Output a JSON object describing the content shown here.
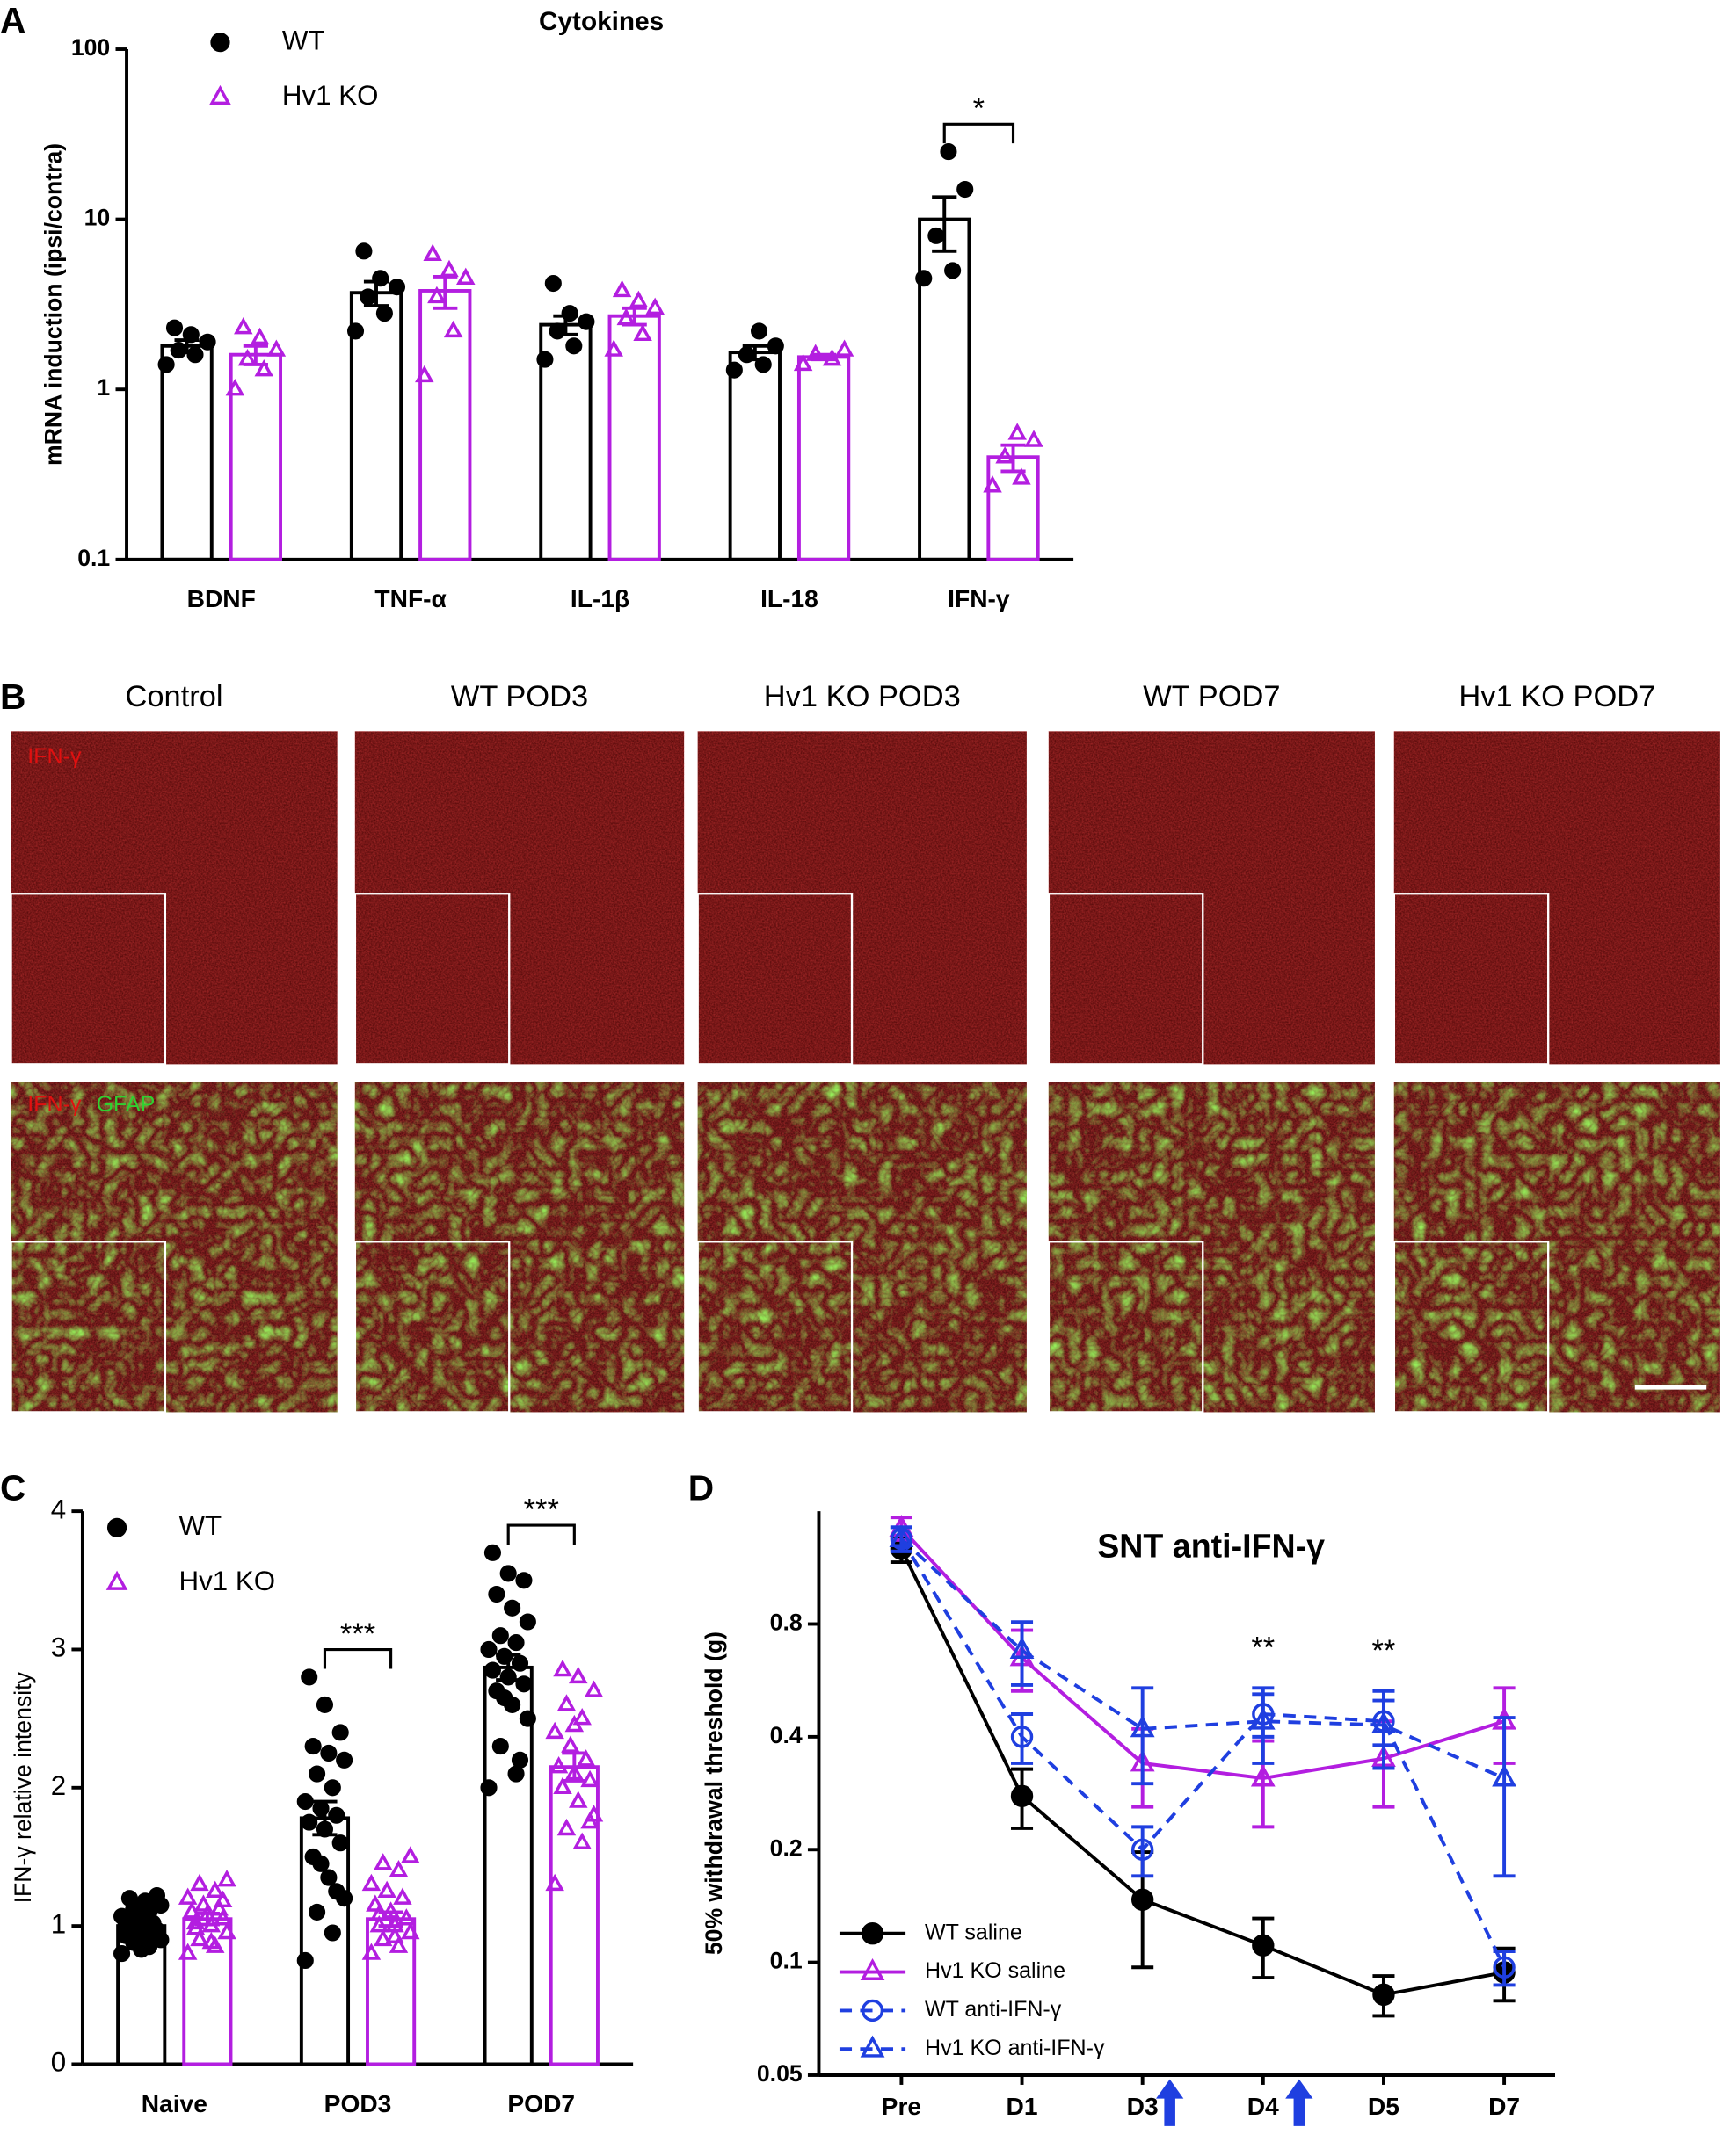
{
  "chart_data": [
    {
      "type": "bar",
      "panel": "A",
      "title": "Cytokines",
      "y_label": "mRNA induction (ipsi/contra)",
      "log_y": true,
      "ylim": [
        0.1,
        100
      ],
      "yticks": [
        0.1,
        1,
        10,
        100
      ],
      "categories": [
        "BDNF",
        "TNF-α",
        "IL-1β",
        "IL-18",
        "IFN-γ"
      ],
      "series": [
        {
          "name": "WT",
          "color": "#000000",
          "marker": "circle",
          "values": [
            1.8,
            3.7,
            2.4,
            1.65,
            10
          ],
          "errors": [
            0.15,
            0.6,
            0.3,
            0.15,
            3.5
          ],
          "points": [
            [
              1.4,
              1.6,
              1.7,
              1.9,
              2.1,
              2.3
            ],
            [
              2.2,
              2.8,
              3.5,
              4.0,
              4.5,
              6.5
            ],
            [
              1.5,
              1.8,
              2.2,
              2.5,
              2.8,
              4.2
            ],
            [
              1.3,
              1.4,
              1.6,
              1.8,
              2.2
            ],
            [
              4.5,
              5,
              8,
              15,
              25
            ]
          ]
        },
        {
          "name": "Hv1 KO",
          "color": "#b31ee0",
          "marker": "triangle",
          "values": [
            1.6,
            3.8,
            2.7,
            1.55,
            0.4
          ],
          "errors": [
            0.2,
            0.8,
            0.3,
            0.05,
            0.07
          ],
          "points": [
            [
              1.0,
              1.3,
              1.5,
              1.7,
              2.0,
              2.3
            ],
            [
              1.2,
              2.2,
              3.5,
              4.5,
              5.0,
              6.2
            ],
            [
              1.7,
              2.1,
              2.6,
              3.0,
              3.3,
              3.8
            ],
            [
              1.4,
              1.5,
              1.6,
              1.7
            ],
            [
              0.27,
              0.3,
              0.4,
              0.5,
              0.55
            ]
          ]
        }
      ],
      "annotations": [
        {
          "text": "*",
          "category": "IFN-γ"
        }
      ]
    },
    {
      "type": "bar",
      "panel": "C",
      "y_label": "IFN-γ relative intensity",
      "log_y": false,
      "ylim": [
        0,
        4
      ],
      "yticks": [
        0,
        1,
        2,
        3,
        4
      ],
      "categories": [
        "Naive",
        "POD3",
        "POD7"
      ],
      "series": [
        {
          "name": "WT",
          "color": "#000000",
          "marker": "circle",
          "values": [
            1.0,
            1.78,
            2.87
          ],
          "errors": [
            0.04,
            0.12,
            0.09
          ],
          "points": [
            [
              0.8,
              0.85,
              0.88,
              0.9,
              0.92,
              0.95,
              0.97,
              1.0,
              1.0,
              1.02,
              1.05,
              1.07,
              1.1,
              1.12,
              1.15,
              1.18,
              1.2,
              1.22,
              0.83,
              0.93
            ],
            [
              0.75,
              0.95,
              1.1,
              1.2,
              1.35,
              1.5,
              1.6,
              1.7,
              1.75,
              1.8,
              1.85,
              1.9,
              2.0,
              2.1,
              2.2,
              2.25,
              2.3,
              2.4,
              2.6,
              2.8,
              1.25,
              1.45
            ],
            [
              2.0,
              2.1,
              2.3,
              2.5,
              2.6,
              2.7,
              2.75,
              2.8,
              2.85,
              2.9,
              2.95,
              3.0,
              3.05,
              3.1,
              3.2,
              3.3,
              3.4,
              3.5,
              3.55,
              3.7,
              2.2,
              2.65
            ]
          ]
        },
        {
          "name": "Hv1 KO",
          "color": "#b31ee0",
          "marker": "triangle",
          "values": [
            1.05,
            1.05,
            2.15
          ],
          "errors": [
            0.04,
            0.05,
            0.1
          ],
          "points": [
            [
              0.8,
              0.85,
              0.9,
              0.95,
              1.0,
              1.02,
              1.05,
              1.08,
              1.1,
              1.12,
              1.15,
              1.2,
              1.25,
              1.3,
              1.33,
              0.88,
              0.98,
              1.18
            ],
            [
              0.8,
              0.85,
              0.9,
              0.95,
              1.0,
              1.0,
              1.05,
              1.1,
              1.15,
              1.2,
              1.25,
              1.3,
              1.4,
              1.45,
              1.5,
              0.92,
              1.08
            ],
            [
              1.3,
              1.6,
              1.7,
              1.8,
              1.9,
              2.0,
              2.05,
              2.1,
              2.15,
              2.2,
              2.3,
              2.4,
              2.5,
              2.6,
              2.7,
              2.8,
              2.85,
              1.75,
              2.45
            ]
          ]
        }
      ],
      "annotations": [
        {
          "text": "***",
          "category": "POD3"
        },
        {
          "text": "***",
          "category": "POD7"
        }
      ]
    },
    {
      "type": "line",
      "panel": "D",
      "title": "SNT anti-IFN-γ",
      "y_label": "50% withdrawal threshold (g)",
      "log_y": true,
      "ylim": [
        0.05,
        1.6
      ],
      "yticks": [
        0.05,
        0.1,
        0.2,
        0.4,
        0.8
      ],
      "categories": [
        "Pre",
        "D1",
        "D3",
        "D4",
        "D5",
        "D7"
      ],
      "series": [
        {
          "name": "WT saline",
          "color": "#000000",
          "marker": "circle",
          "filled": true,
          "dashed": false,
          "values": [
            1.27,
            0.278,
            0.147,
            0.111,
            0.082,
            0.094
          ],
          "errors": [
            0.1,
            0.05,
            0.05,
            0.02,
            0.01,
            0.015
          ]
        },
        {
          "name": "Hv1 KO saline",
          "color": "#b31ee0",
          "marker": "triangle",
          "filled": false,
          "dashed": false,
          "values": [
            1.44,
            0.65,
            0.34,
            0.31,
            0.35,
            0.44
          ],
          "errors": [
            0.1,
            0.12,
            0.08,
            0.08,
            0.09,
            0.1
          ]
        },
        {
          "name": "WT anti-IFN-γ",
          "color": "#1f3fe0",
          "marker": "circle",
          "filled": false,
          "dashed": true,
          "values": [
            1.35,
            0.4,
            0.2,
            0.46,
            0.44,
            0.097
          ],
          "errors": [
            0.1,
            0.06,
            0.03,
            0.06,
            0.06,
            0.01
          ]
        },
        {
          "name": "Hv1 KO anti-IFN-γ",
          "color": "#1f3fe0",
          "marker": "triangle",
          "filled": false,
          "dashed": true,
          "values": [
            1.35,
            0.68,
            0.42,
            0.44,
            0.43,
            0.31
          ],
          "errors": [
            0.1,
            0.13,
            0.12,
            0.1,
            0.1,
            0.14
          ]
        }
      ],
      "annotations": [
        {
          "text": "**",
          "category": "D4"
        },
        {
          "text": "**",
          "category": "D5"
        }
      ]
    }
  ],
  "panel_b": {
    "panel": "B",
    "columns": [
      "Control",
      "WT POD3",
      "Hv1 KO POD3",
      "WT POD7",
      "Hv1 KO POD7"
    ],
    "ifn_label": "IFN-γ",
    "gfap_label": "GFAP"
  }
}
